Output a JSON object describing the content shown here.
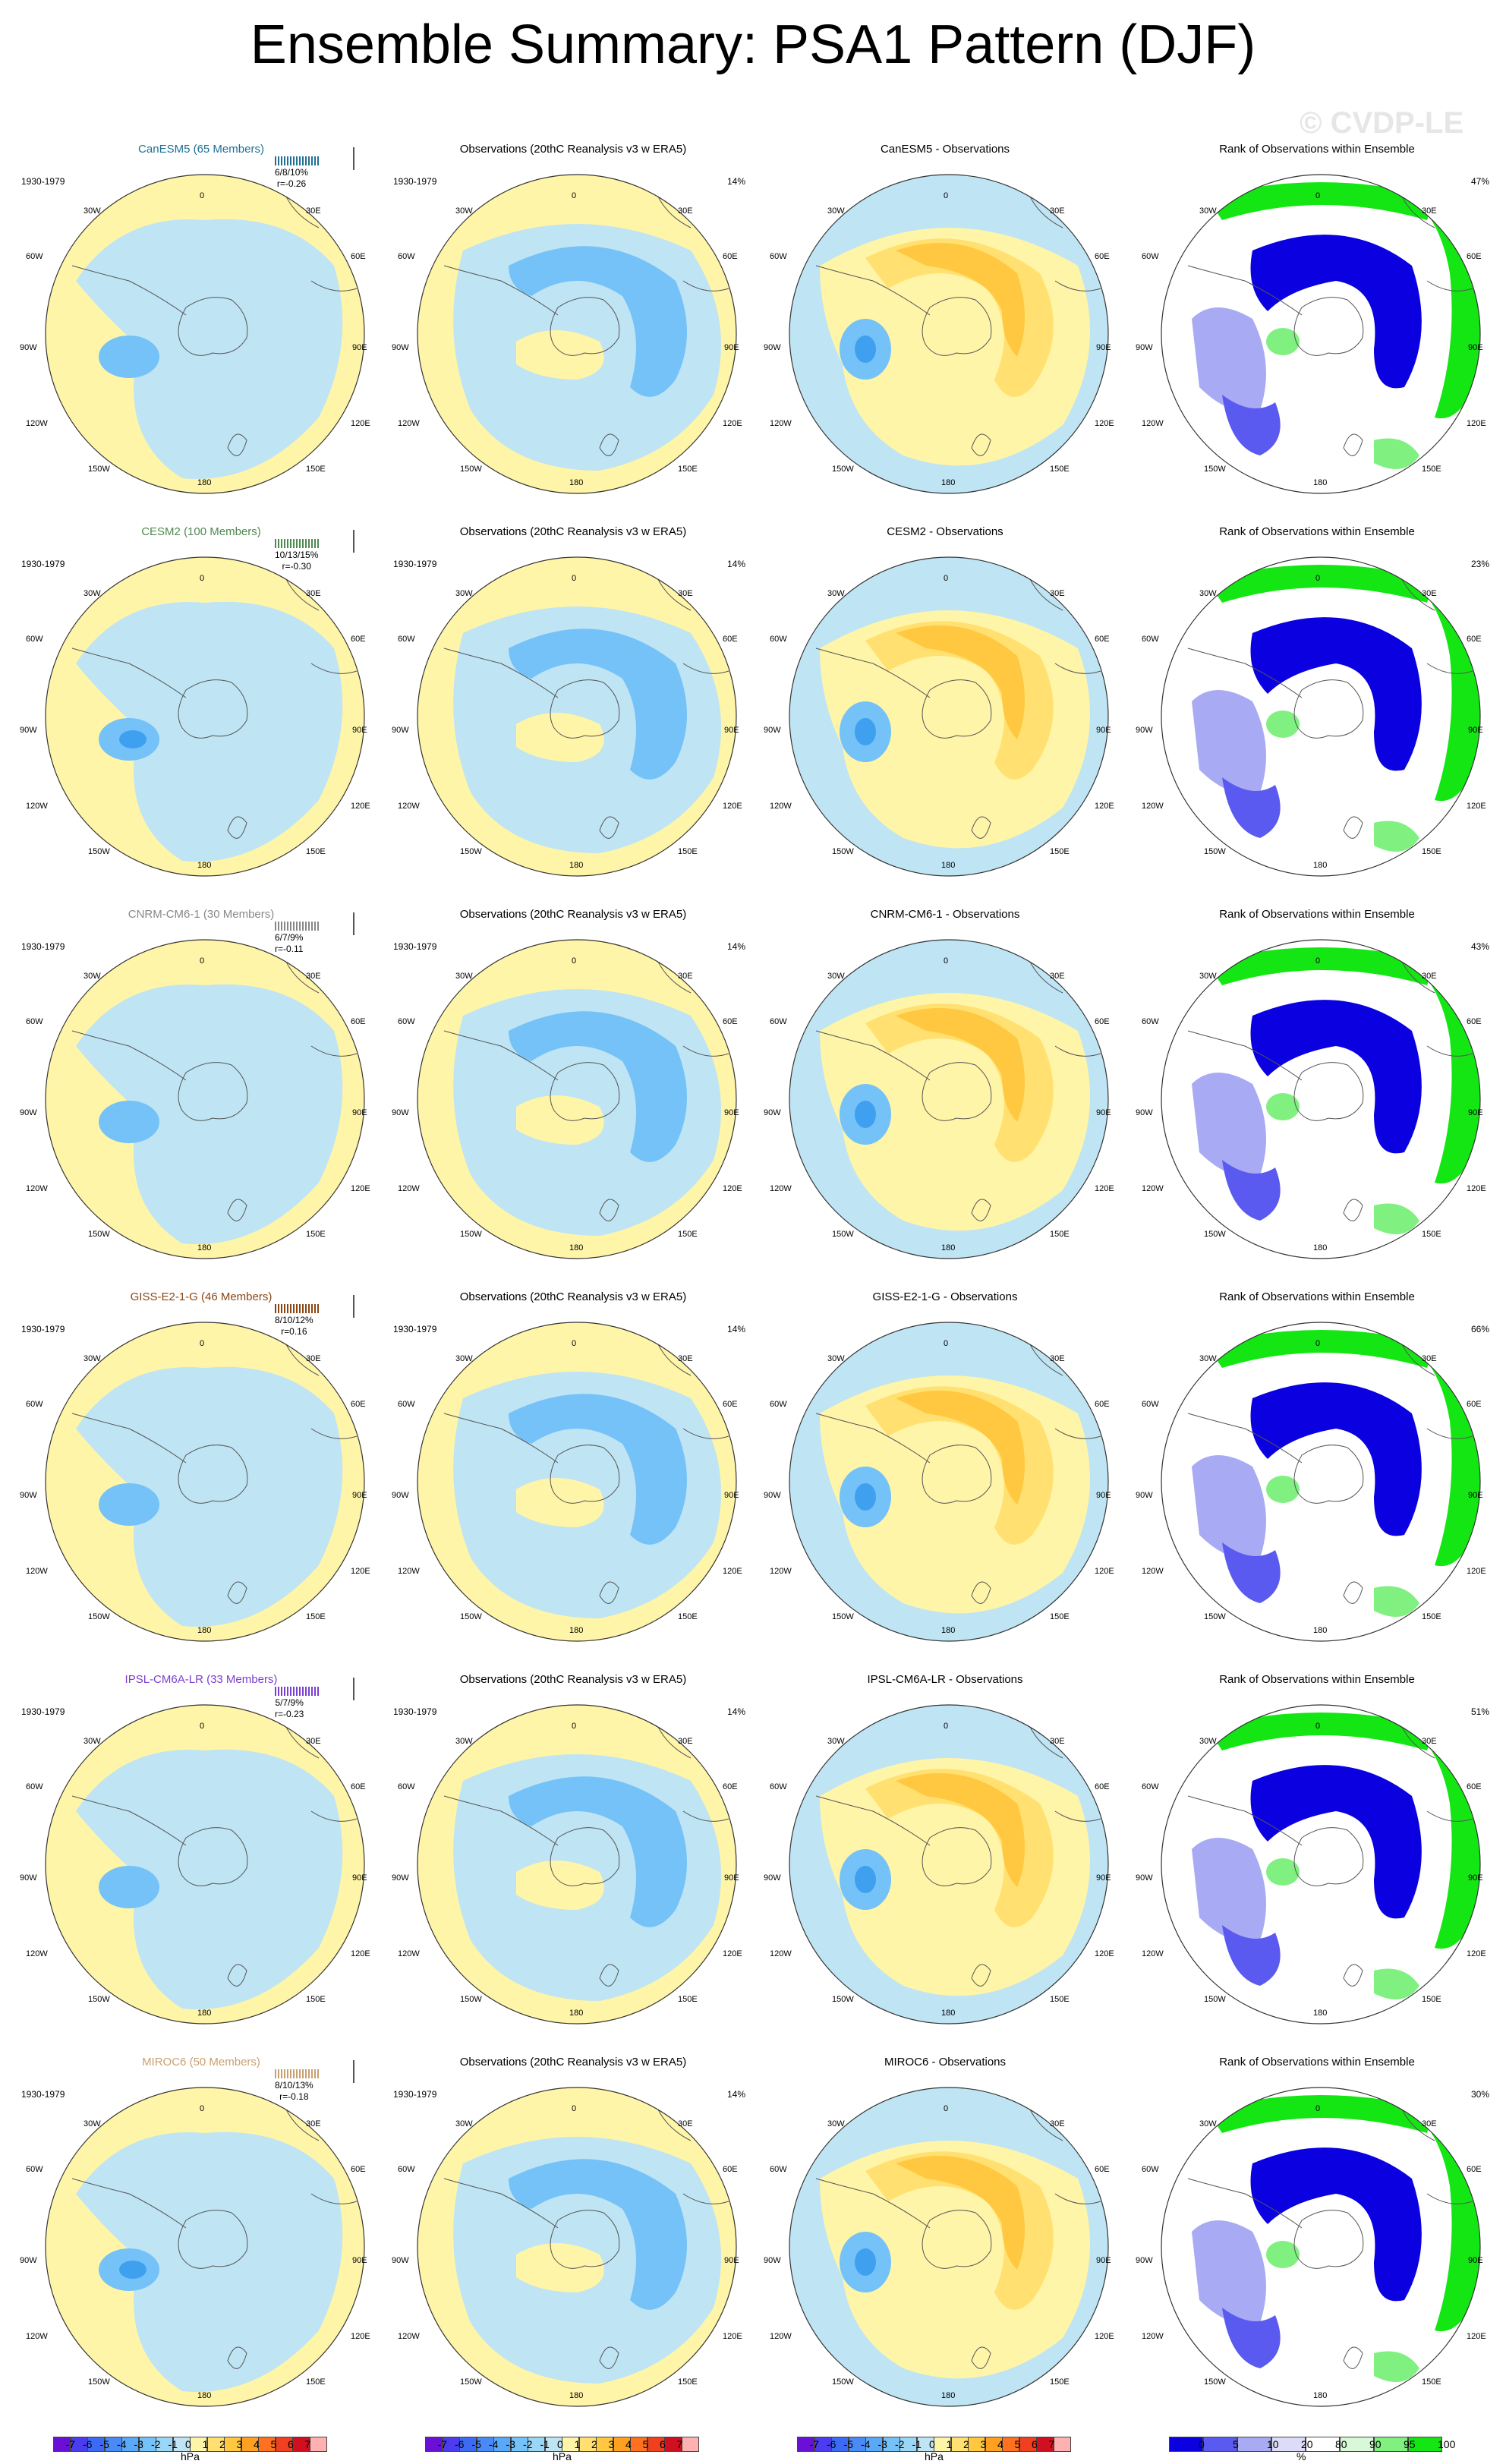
{
  "title": "Ensemble Summary: PSA1 Pattern (DJF)",
  "watermark": "© CVDP-LE",
  "period": "1930-1979",
  "obs_title": "Observations (20thC Reanalysis v3 w ERA5)",
  "rank_title": "Rank of Observations within Ensemble",
  "obs_pct": "14%",
  "lon_labels": {
    "n": "0",
    "nne": "30E",
    "ne": "60E",
    "e": "90E",
    "se": "120E",
    "sse": "150E",
    "s": "180",
    "ssw": "150W",
    "sw": "120W",
    "w": "90W",
    "nw": "60W",
    "nnw": "30W"
  },
  "rows": [
    {
      "model_title": "CanESM5 (65 Members)",
      "model_color": "#1f6f96",
      "stats1": "6/8/10%",
      "stats2": "r=-0.26",
      "diff_title": "CanESM5 - Observations",
      "rank_pct": "47%"
    },
    {
      "model_title": "CESM2 (100 Members)",
      "model_color": "#4f8a4f",
      "stats1": "10/13/15%",
      "stats2": "r=-0.30",
      "diff_title": "CESM2 - Observations",
      "rank_pct": "23%"
    },
    {
      "model_title": "CNRM-CM6-1 (30 Members)",
      "model_color": "#888888",
      "stats1": "6/7/9%",
      "stats2": "r=-0.11",
      "diff_title": "CNRM-CM6-1 - Observations",
      "rank_pct": "43%"
    },
    {
      "model_title": "GISS-E2-1-G (46 Members)",
      "model_color": "#8b4513",
      "stats1": "8/10/12%",
      "stats2": "r=0.16",
      "diff_title": "GISS-E2-1-G - Observations",
      "rank_pct": "66%"
    },
    {
      "model_title": "IPSL-CM6A-LR (33 Members)",
      "model_color": "#7b3fd0",
      "stats1": "5/7/9%",
      "stats2": "r=-0.23",
      "diff_title": "IPSL-CM6A-LR - Observations",
      "rank_pct": "51%"
    },
    {
      "model_title": "MIROC6 (50 Members)",
      "model_color": "#c8a070",
      "stats1": "8/10/13%",
      "stats2": "r=-0.18",
      "diff_title": "MIROC6 - Observations",
      "rank_pct": "30%"
    }
  ],
  "colorbar_hpa": {
    "ticks": [
      "-7",
      "-6",
      "-5",
      "-4",
      "-3",
      "-2",
      "-1",
      "0",
      "1",
      "2",
      "3",
      "4",
      "5",
      "6",
      "7"
    ],
    "unit": "hPa",
    "colors": [
      "#6a0fd8",
      "#4b3cf0",
      "#3c6af5",
      "#4a8af7",
      "#5aa8f8",
      "#74c2f8",
      "#9ad6f5",
      "#bfe4f4",
      "#fff5a8",
      "#ffe070",
      "#ffc840",
      "#ffa020",
      "#ff7020",
      "#f04020",
      "#d01020",
      "#ffb0b0"
    ]
  },
  "colorbar_rank": {
    "ticks": [
      "0",
      "5",
      "10",
      "20",
      "80",
      "90",
      "95",
      "100"
    ],
    "unit": "%",
    "colors": [
      "#0a00e0",
      "#5a5af0",
      "#a8aaf4",
      "#dcdcf8",
      "#ffffff",
      "#d8f8d8",
      "#80f080",
      "#14e614"
    ]
  }
}
